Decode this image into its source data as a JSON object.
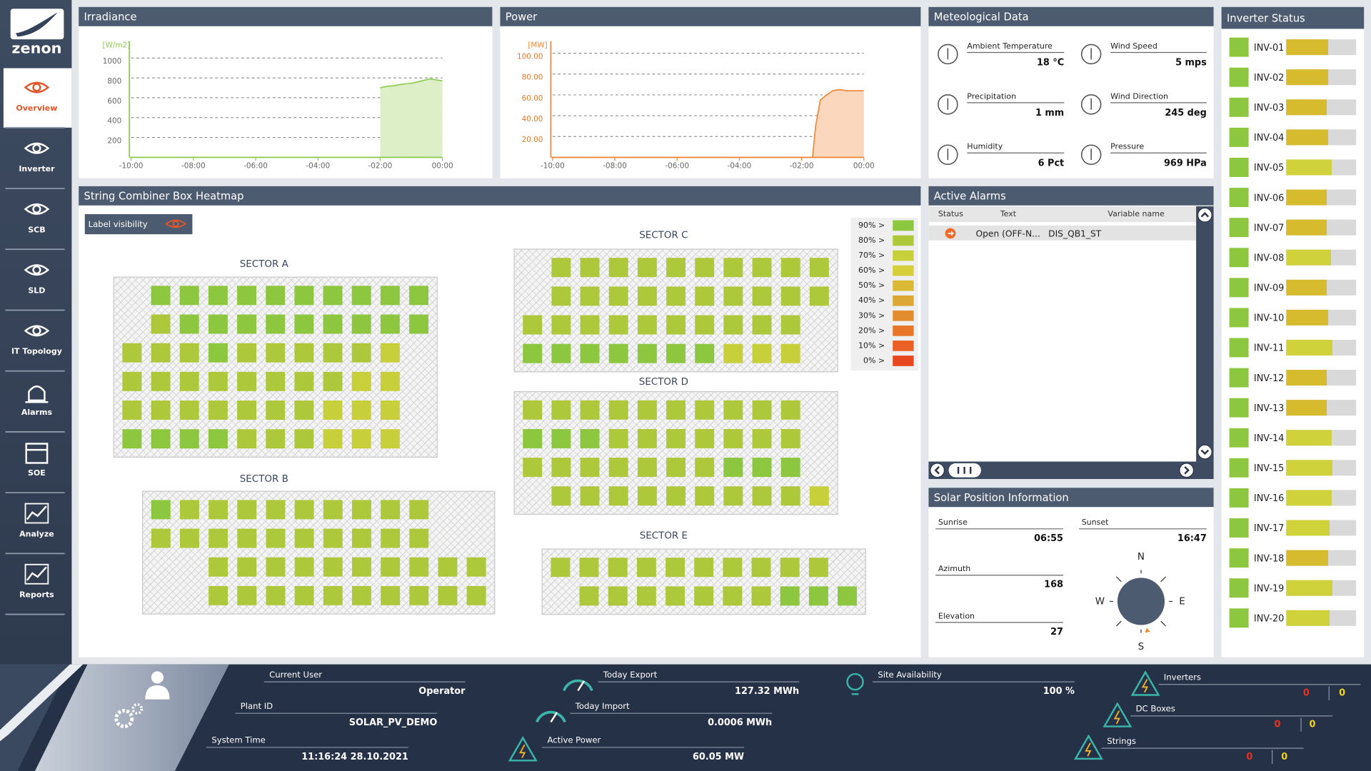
{
  "sidebar": {
    "logo": "zenon",
    "selected_index": 0,
    "items": [
      "Overview",
      "Inverter",
      "SCB",
      "SLD",
      "IT Topology",
      "Alarms",
      "SOE",
      "Analyze",
      "Reports"
    ]
  },
  "chart_data": [
    {
      "type": "area",
      "title": "Irradiance",
      "y_unit": "[W/m2]",
      "color": "#8fcb55",
      "fill": "#dcefc6",
      "x": [
        -2.0,
        -1.8,
        -1.6,
        -1.4,
        -1.2,
        -1.0,
        -0.8,
        -0.6,
        -0.4,
        -0.2,
        0
      ],
      "values": [
        700,
        715,
        720,
        730,
        740,
        745,
        760,
        775,
        790,
        780,
        770
      ],
      "xlim": [
        -10,
        0
      ],
      "xticks": [
        {
          "value": -10,
          "label": "-10:00"
        },
        {
          "value": -8,
          "label": "-08:00"
        },
        {
          "value": -6,
          "label": "-06:00"
        },
        {
          "value": -4,
          "label": "-04:00"
        },
        {
          "value": -2,
          "label": "-02:00"
        },
        {
          "value": 0,
          "label": "00:00"
        }
      ],
      "ylim": [
        0,
        1100
      ],
      "yticks": [
        200,
        400,
        600,
        800,
        1000
      ],
      "grid": true
    },
    {
      "type": "area",
      "title": "Power",
      "y_unit": "[MW]",
      "color": "#ee8a3c",
      "fill": "#fbd7bd",
      "x": [
        -10,
        -1.65,
        -1.55,
        -1.4,
        -1.2,
        -1.0,
        -0.8,
        -0.5,
        0
      ],
      "values": [
        0,
        0,
        30,
        55,
        60,
        64,
        65,
        64,
        64
      ],
      "xlim": [
        -10,
        0
      ],
      "xticks": [
        {
          "value": -10,
          "label": "-10:00"
        },
        {
          "value": -8,
          "label": "-08:00"
        },
        {
          "value": -6,
          "label": "-06:00"
        },
        {
          "value": -4,
          "label": "-04:00"
        },
        {
          "value": -2,
          "label": "-02:00"
        },
        {
          "value": 0,
          "label": "00:00"
        }
      ],
      "ylim": [
        0,
        105
      ],
      "yticks": [
        {
          "value": 20,
          "label": "20.00"
        },
        {
          "value": 40,
          "label": "40.00"
        },
        {
          "value": 60,
          "label": "60.00"
        },
        {
          "value": 80,
          "label": "80.00"
        },
        {
          "value": 100,
          "label": "100.00"
        }
      ],
      "grid": true
    }
  ],
  "meteo": {
    "title": "Meteological Data",
    "items": [
      {
        "label": "Ambient Temperature",
        "value": "18 °C"
      },
      {
        "label": "Wind Speed",
        "value": "5 mps"
      },
      {
        "label": "Precipitation",
        "value": "1 mm"
      },
      {
        "label": "Wind Direction",
        "value": "245 deg"
      },
      {
        "label": "Humidity",
        "value": "6 Pct"
      },
      {
        "label": "Pressure",
        "value": "969 HPa"
      }
    ]
  },
  "inverter_status": {
    "title": "Inverter Status",
    "xlim": [
      0,
      100
    ],
    "inverters": [
      {
        "name": "INV-01",
        "value": 60,
        "color": "#d7bb2f"
      },
      {
        "name": "INV-02",
        "value": 60,
        "color": "#d7bb2f"
      },
      {
        "name": "INV-03",
        "value": 58,
        "color": "#d7bb2f"
      },
      {
        "name": "INV-04",
        "value": 60,
        "color": "#d7bb2f"
      },
      {
        "name": "INV-05",
        "value": 65,
        "color": "#cfd23a"
      },
      {
        "name": "INV-06",
        "value": 58,
        "color": "#d7bb2f"
      },
      {
        "name": "INV-07",
        "value": 58,
        "color": "#d7bb2f"
      },
      {
        "name": "INV-08",
        "value": 64,
        "color": "#cfd23a"
      },
      {
        "name": "INV-09",
        "value": 58,
        "color": "#d7bb2f"
      },
      {
        "name": "INV-10",
        "value": 60,
        "color": "#d7bb2f"
      },
      {
        "name": "INV-11",
        "value": 66,
        "color": "#cfd23a"
      },
      {
        "name": "INV-12",
        "value": 58,
        "color": "#d7bb2f"
      },
      {
        "name": "INV-13",
        "value": 58,
        "color": "#d7bb2f"
      },
      {
        "name": "INV-14",
        "value": 65,
        "color": "#cfd23a"
      },
      {
        "name": "INV-15",
        "value": 66,
        "color": "#cfd23a"
      },
      {
        "name": "INV-16",
        "value": 65,
        "color": "#cfd23a"
      },
      {
        "name": "INV-17",
        "value": 62,
        "color": "#cfd23a"
      },
      {
        "name": "INV-18",
        "value": 60,
        "color": "#d7bb2f"
      },
      {
        "name": "INV-19",
        "value": 66,
        "color": "#cfd23a"
      },
      {
        "name": "INV-20",
        "value": 62,
        "color": "#cfd23a"
      }
    ]
  },
  "heatmap": {
    "title": "String Combiner Box Heatmap",
    "label_toggle": "Label visibility",
    "legend": [
      {
        "value": 90,
        "label": "90% >",
        "color": "#8dc63f"
      },
      {
        "value": 80,
        "label": "80% >",
        "color": "#adc93b"
      },
      {
        "value": 70,
        "label": "70% >",
        "color": "#c7cf3a"
      },
      {
        "value": 60,
        "label": "60% >",
        "color": "#d6cf3a"
      },
      {
        "value": 50,
        "label": "50% >",
        "color": "#d9b935"
      },
      {
        "value": 40,
        "label": "40% >",
        "color": "#dca733"
      },
      {
        "value": 30,
        "label": "30% >",
        "color": "#e28e30"
      },
      {
        "value": 20,
        "label": "20% >",
        "color": "#e7762b"
      },
      {
        "value": 10,
        "label": "10% >",
        "color": "#ea6126"
      },
      {
        "value": 0,
        "label": "0% >",
        "color": "#e8481f"
      }
    ],
    "sectors": [
      {
        "name": "SECTOR A",
        "rows": [
          [
            null,
            90,
            90,
            90,
            90,
            90,
            90,
            90,
            90,
            90,
            90
          ],
          [
            null,
            80,
            90,
            90,
            90,
            90,
            90,
            90,
            90,
            90,
            90
          ],
          [
            80,
            80,
            80,
            90,
            80,
            80,
            80,
            80,
            80,
            70,
            null
          ],
          [
            80,
            80,
            80,
            80,
            80,
            80,
            80,
            80,
            70,
            70,
            null
          ],
          [
            80,
            80,
            80,
            80,
            80,
            80,
            80,
            70,
            70,
            70,
            null
          ],
          [
            90,
            90,
            90,
            90,
            80,
            80,
            80,
            70,
            70,
            70,
            null
          ]
        ]
      },
      {
        "name": "SECTOR B",
        "rows": [
          [
            90,
            80,
            80,
            80,
            80,
            80,
            80,
            80,
            80,
            80,
            null,
            null
          ],
          [
            80,
            80,
            80,
            80,
            80,
            80,
            80,
            80,
            80,
            80,
            null,
            null
          ],
          [
            null,
            null,
            80,
            80,
            80,
            80,
            80,
            80,
            80,
            80,
            80,
            80
          ],
          [
            null,
            null,
            80,
            80,
            80,
            80,
            80,
            80,
            80,
            80,
            80,
            80
          ]
        ]
      },
      {
        "name": "SECTOR C",
        "rows": [
          [
            null,
            80,
            80,
            80,
            80,
            80,
            80,
            80,
            80,
            80,
            80
          ],
          [
            null,
            80,
            80,
            80,
            80,
            80,
            80,
            80,
            80,
            80,
            80
          ],
          [
            80,
            80,
            80,
            80,
            80,
            80,
            80,
            80,
            80,
            80,
            null
          ],
          [
            90,
            90,
            90,
            90,
            90,
            90,
            90,
            70,
            70,
            70,
            null
          ]
        ]
      },
      {
        "name": "SECTOR D",
        "rows": [
          [
            80,
            80,
            80,
            80,
            80,
            80,
            80,
            80,
            80,
            80,
            null
          ],
          [
            90,
            90,
            90,
            80,
            80,
            80,
            80,
            80,
            80,
            80,
            null
          ],
          [
            80,
            80,
            80,
            80,
            80,
            80,
            80,
            90,
            90,
            90,
            null
          ],
          [
            null,
            80,
            80,
            80,
            80,
            80,
            80,
            80,
            80,
            80,
            70
          ]
        ]
      },
      {
        "name": "SECTOR E",
        "rows": [
          [
            80,
            80,
            80,
            80,
            80,
            80,
            80,
            80,
            80,
            80,
            null
          ],
          [
            null,
            80,
            80,
            80,
            80,
            80,
            80,
            80,
            90,
            90,
            90
          ]
        ]
      }
    ]
  },
  "alarms": {
    "title": "Active Alarms",
    "columns": [
      "Status",
      "Text",
      "Variable name"
    ],
    "rows": [
      [
        "Open (OFF-N...",
        "DIS_QB1_ST"
      ]
    ]
  },
  "solar": {
    "title": "Solar Position Information",
    "items": [
      {
        "label": "Sunrise",
        "value": "06:55"
      },
      {
        "label": "Sunset",
        "value": "16:47"
      },
      {
        "label": "Azimuth",
        "value": 168
      },
      {
        "label": "Elevation",
        "value": 27
      }
    ],
    "compass": [
      "N",
      "E",
      "S",
      "W"
    ]
  },
  "footer": {
    "fields": [
      {
        "label": "Current User",
        "value": "Operator"
      },
      {
        "label": "Plant ID",
        "value": "SOLAR_PV_DEMO"
      },
      {
        "label": "System Time",
        "value": "11:16:24 28.10.2021"
      },
      {
        "label": "Today Export",
        "value": "127.32 MWh"
      },
      {
        "label": "Today Import",
        "value": "0.0006 MWh"
      },
      {
        "label": "Active Power",
        "value": "60.05 MW"
      },
      {
        "label": "Site Availability",
        "value": "100 %"
      }
    ],
    "counters": [
      {
        "label": "Inverters",
        "values": [
          0,
          0
        ]
      },
      {
        "label": "DC Boxes",
        "values": [
          0,
          0
        ]
      },
      {
        "label": "Strings",
        "values": [
          0,
          0
        ]
      }
    ]
  }
}
